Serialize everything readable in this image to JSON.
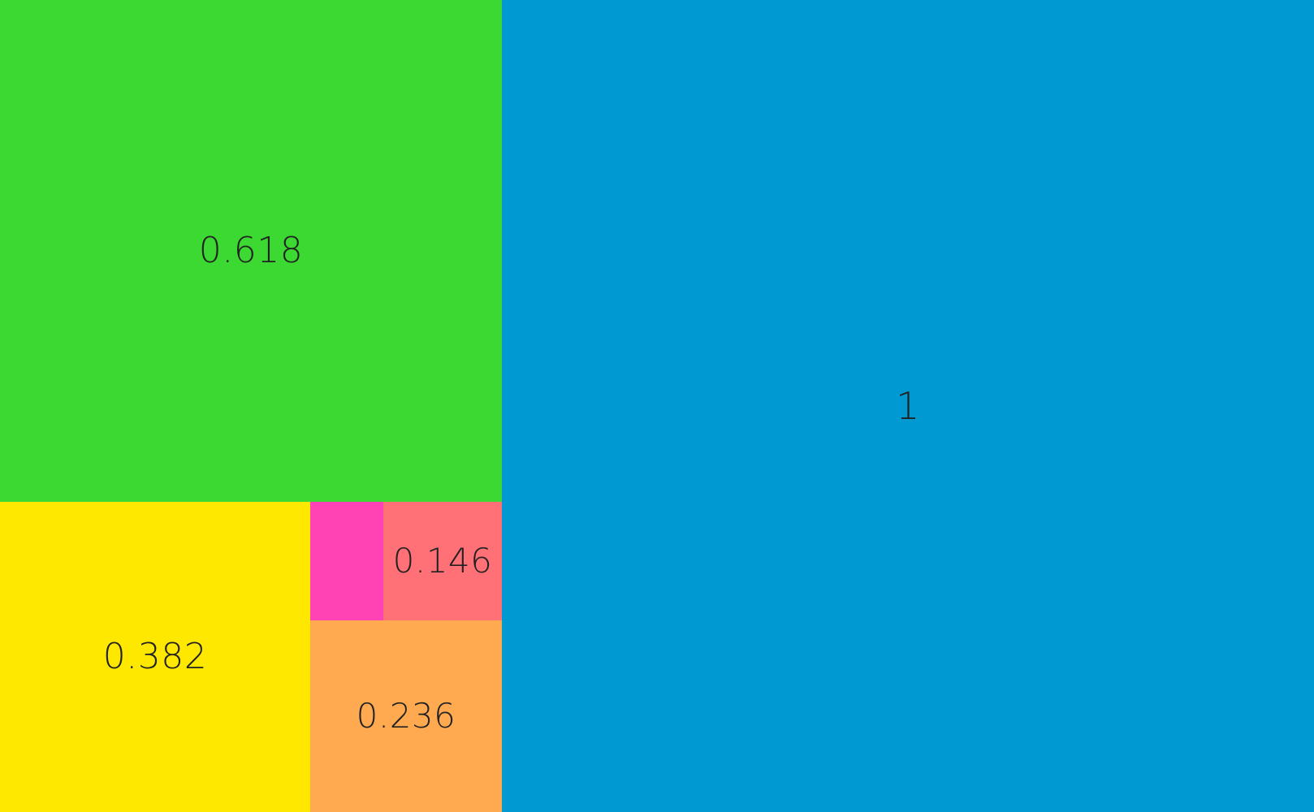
{
  "tiles": {
    "one": {
      "label": "1",
      "color": "#0099D1"
    },
    "point618": {
      "label": "0.618",
      "color": "#3CD933"
    },
    "point382": {
      "label": "0.382",
      "color": "#FFE800"
    },
    "point236": {
      "label": "0.236",
      "color": "#FFAA50"
    },
    "point146": {
      "label": "0.146",
      "color": "#FF7077"
    },
    "remainder": {
      "label": "",
      "color": "#FF43B4"
    }
  }
}
